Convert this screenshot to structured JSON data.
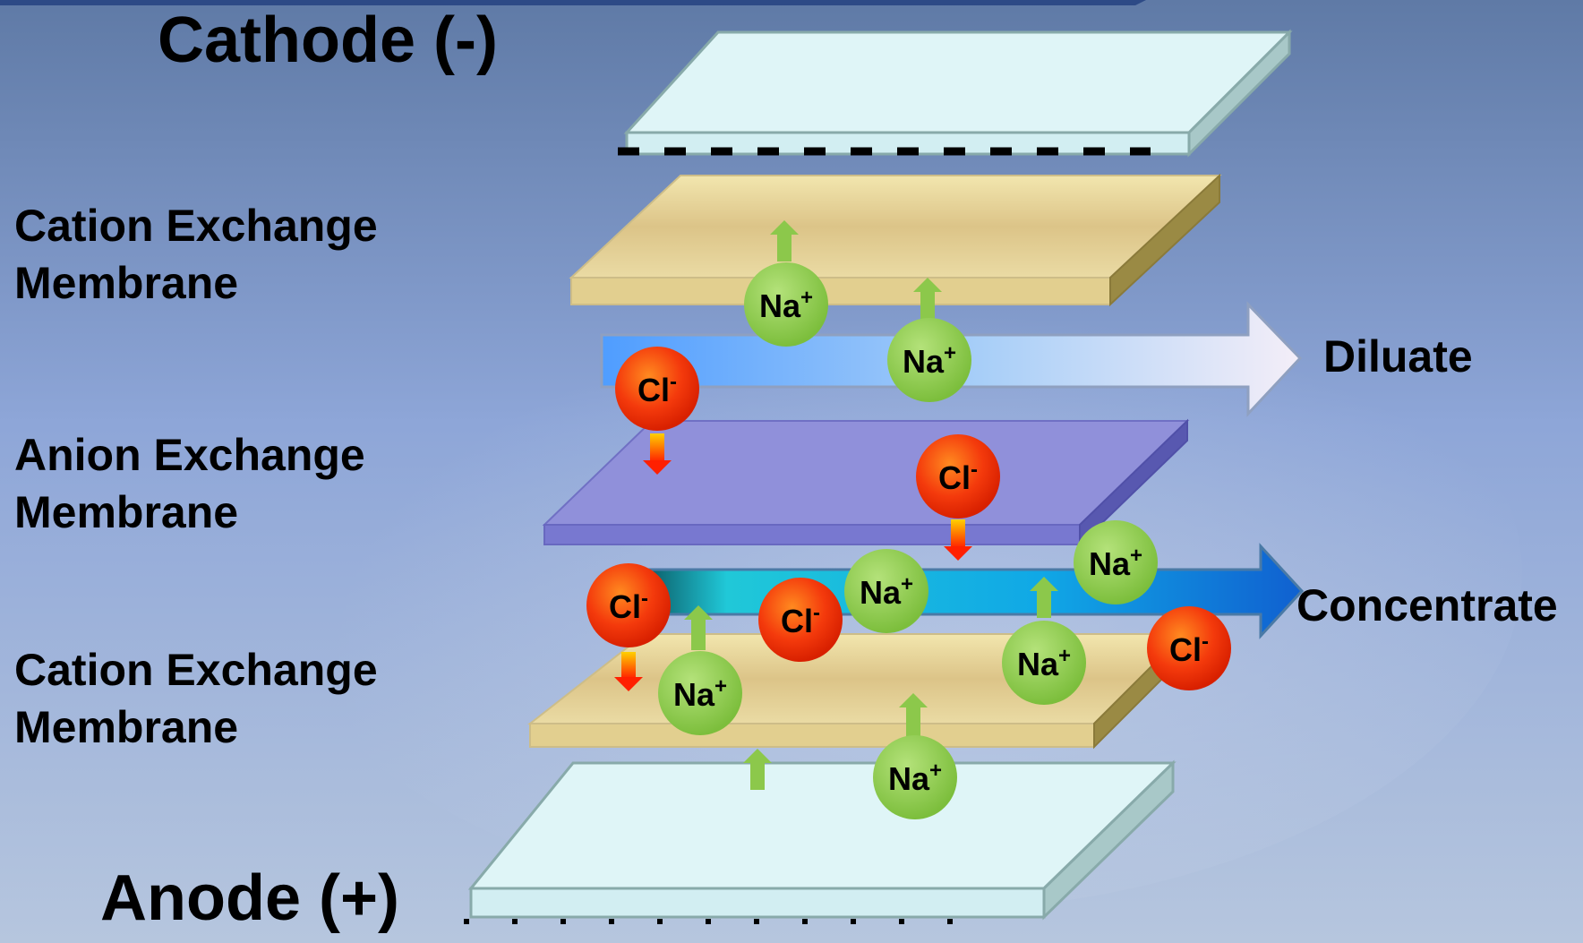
{
  "labels": {
    "cathode": "Cathode (-)",
    "anode": "Anode (+)",
    "cation_membrane_top": [
      "Cation Exchange",
      "Membrane"
    ],
    "anion_membrane": [
      "Anion Exchange",
      "Membrane"
    ],
    "cation_membrane_bottom": [
      "Cation Exchange",
      "Membrane"
    ],
    "diluate": "Diluate",
    "concentrate": "Concentrate"
  },
  "ions": {
    "sodium": {
      "symbol": "Na",
      "charge": "+",
      "color": "#8cc84b"
    },
    "chloride": {
      "symbol": "Cl",
      "charge": "-",
      "color": "#f04010"
    }
  },
  "colors": {
    "electrode": "#dff5f7",
    "cation_membrane": "#e3cf94",
    "anion_membrane": "#8f8fd8",
    "diluate_stream": "#6ab0ff",
    "concentrate_stream": "#1a8fe0",
    "na_arrow": "#8cc84b",
    "cl_arrow": "#f09010"
  },
  "icons": {
    "na_ion": "green-circle",
    "cl_ion": "red-circle",
    "na_arrow": "green-up-arrow",
    "cl_arrow": "orange-down-arrow",
    "stream_arrow": "block-arrow"
  }
}
